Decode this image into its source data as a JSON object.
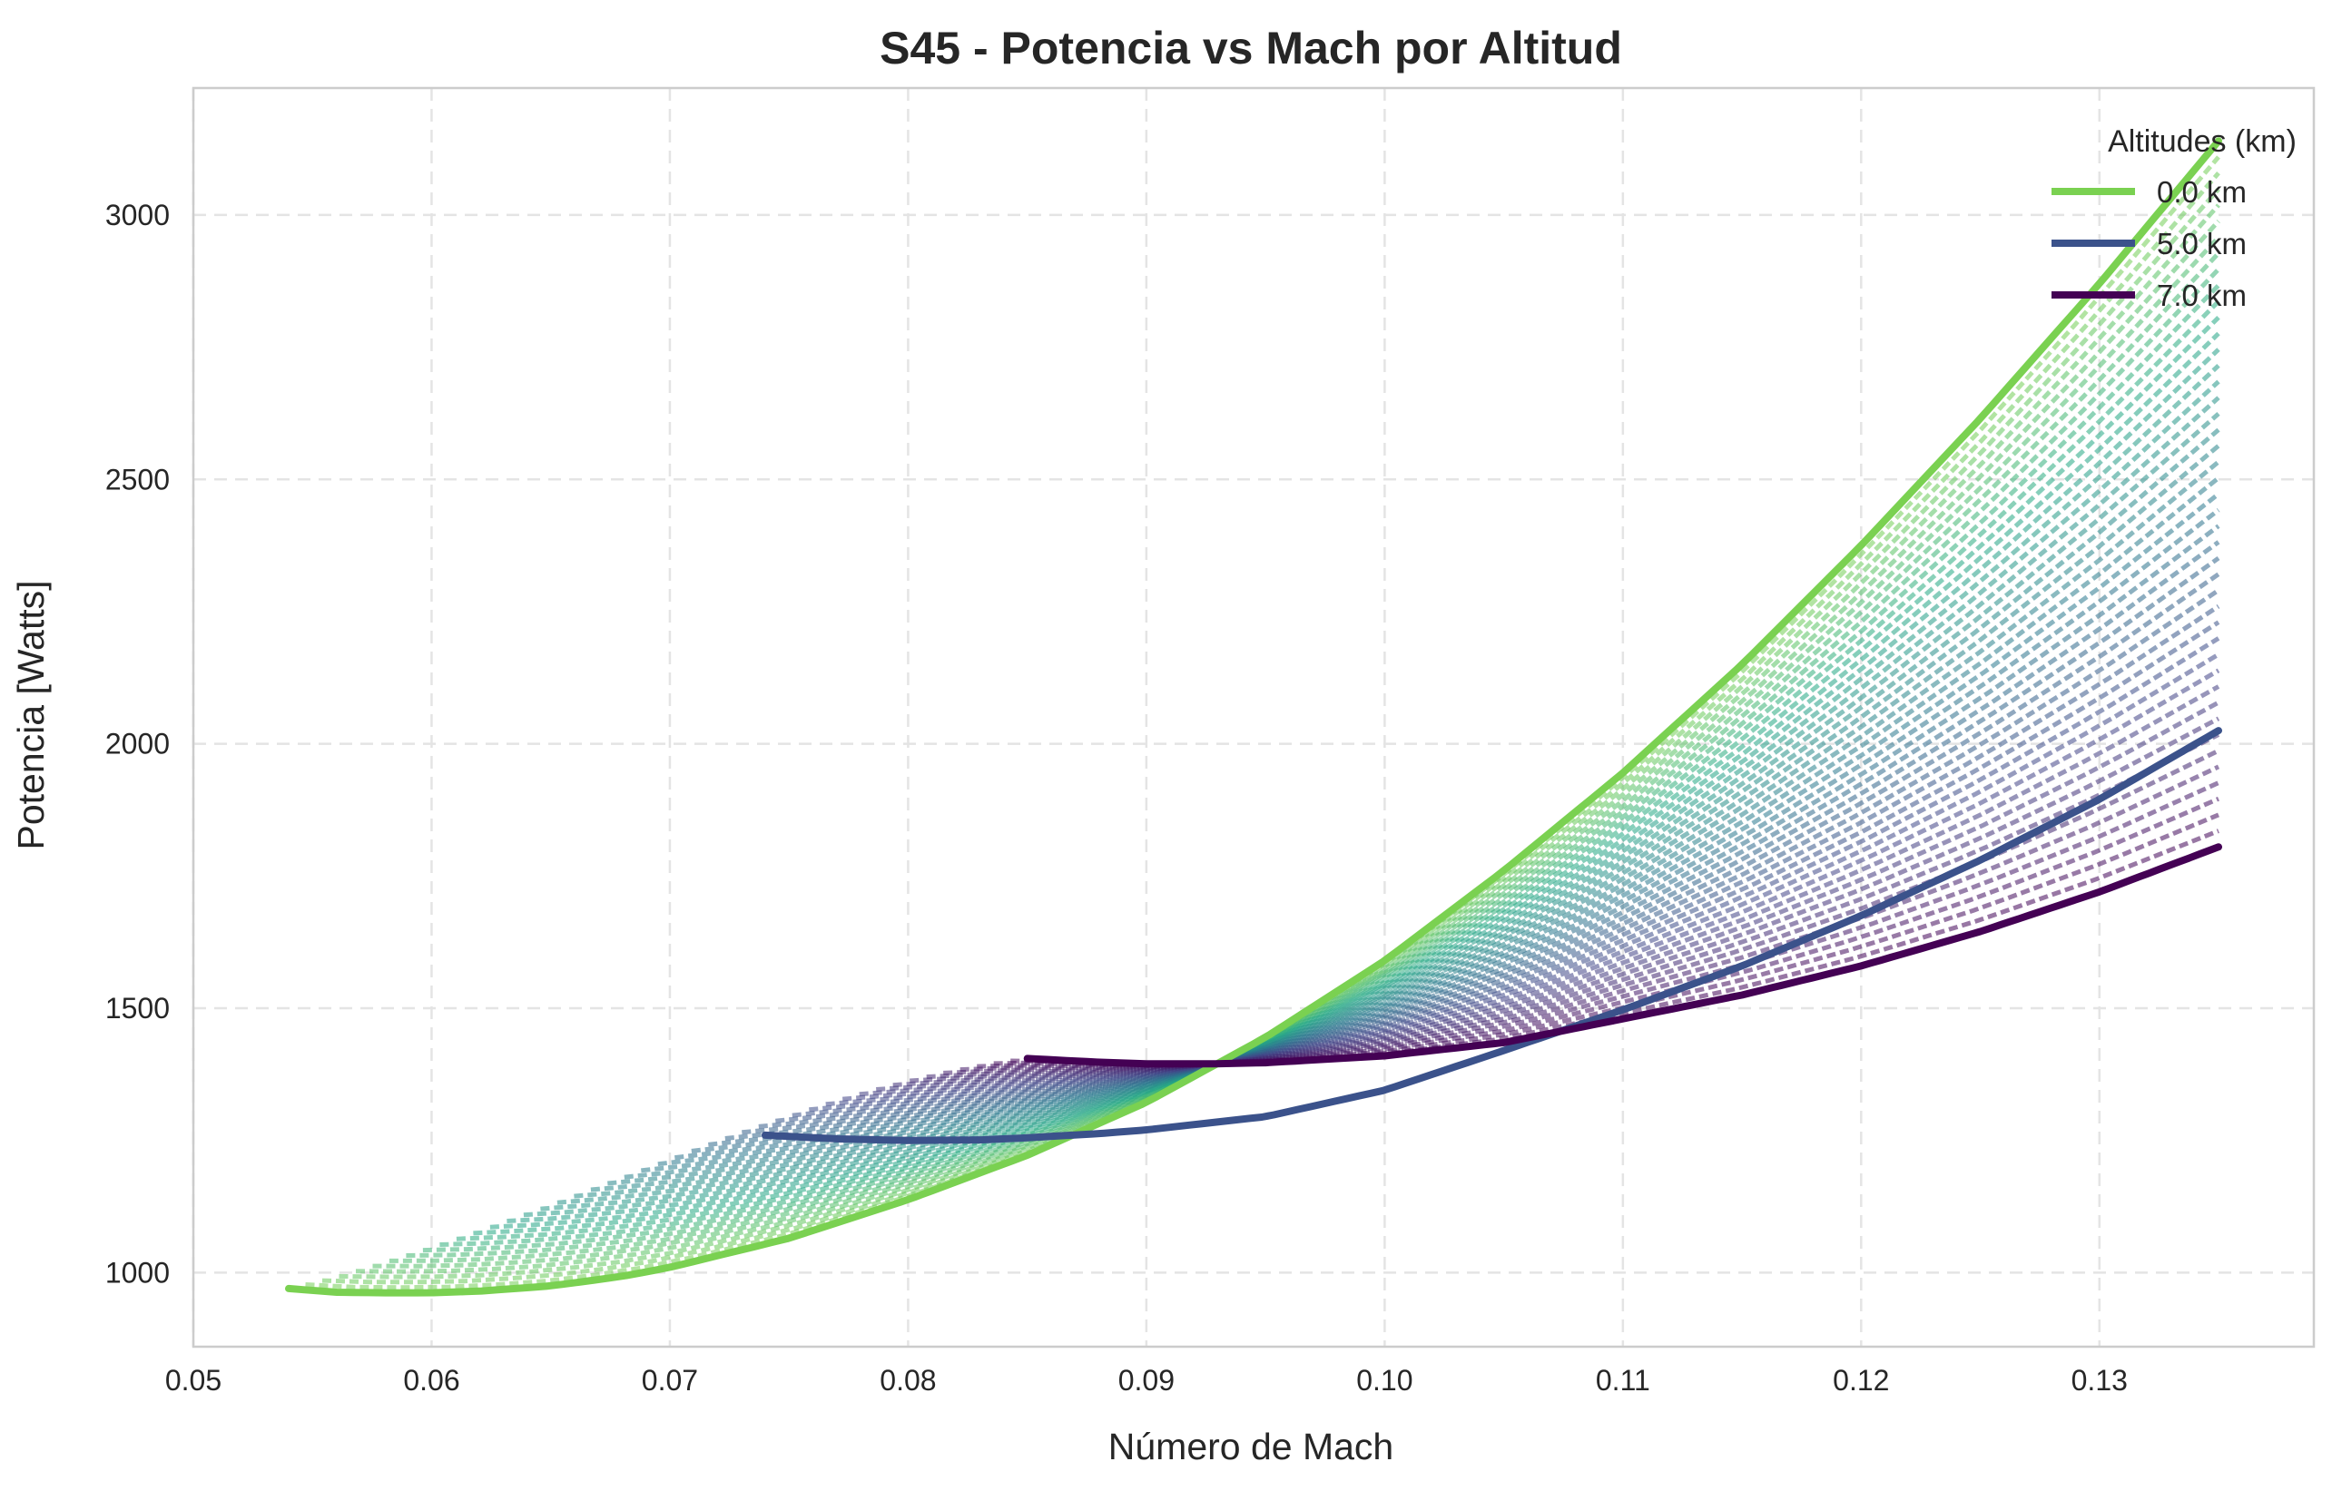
{
  "chart_data": {
    "type": "line",
    "title": "S45 - Potencia vs Mach por Altitud",
    "xlabel": "Número de Mach",
    "ylabel": "Potencia [Watts]",
    "xlim": [
      0.05,
      0.139
    ],
    "ylim": [
      860,
      3240
    ],
    "xticks": [
      0.05,
      0.06,
      0.07,
      0.08,
      0.09,
      0.1,
      0.11,
      0.12,
      0.13
    ],
    "xtick_labels": [
      "0.05",
      "0.06",
      "0.07",
      "0.08",
      "0.09",
      "0.10",
      "0.11",
      "0.12",
      "0.13"
    ],
    "yticks": [
      1000,
      1500,
      2000,
      2500,
      3000
    ],
    "ytick_labels": [
      "1000",
      "1500",
      "2000",
      "2500",
      "3000"
    ],
    "grid": true,
    "grid_style": "dashed",
    "legend_title": "Altitudes (km)",
    "legend_position": "top-right",
    "series": [
      {
        "name": "0.0 km",
        "color": "#7ad151",
        "x": [
          0.054,
          0.056,
          0.058,
          0.06,
          0.062,
          0.065,
          0.068,
          0.07,
          0.075,
          0.08,
          0.085,
          0.09,
          0.095,
          0.1,
          0.105,
          0.11,
          0.115,
          0.12,
          0.125,
          0.13,
          0.135
        ],
        "y": [
          970,
          963,
          962,
          962,
          965,
          975,
          993,
          1010,
          1065,
          1138,
          1222,
          1322,
          1445,
          1590,
          1760,
          1945,
          2150,
          2375,
          2615,
          2870,
          3140
        ]
      },
      {
        "name": "5.0 km",
        "color": "#3b528b",
        "x": [
          0.074,
          0.077,
          0.08,
          0.083,
          0.085,
          0.088,
          0.09,
          0.095,
          0.1,
          0.105,
          0.11,
          0.115,
          0.12,
          0.125,
          0.13,
          0.135
        ],
        "y": [
          1260,
          1253,
          1250,
          1251,
          1255,
          1263,
          1270,
          1295,
          1345,
          1420,
          1497,
          1580,
          1675,
          1780,
          1895,
          2025
        ]
      },
      {
        "name": "7.0 km",
        "color": "#440154",
        "x": [
          0.085,
          0.088,
          0.09,
          0.093,
          0.095,
          0.1,
          0.105,
          0.11,
          0.115,
          0.12,
          0.125,
          0.13,
          0.135
        ],
        "y": [
          1405,
          1398,
          1395,
          1395,
          1397,
          1410,
          1435,
          1480,
          1525,
          1580,
          1645,
          1720,
          1805
        ]
      }
    ]
  }
}
